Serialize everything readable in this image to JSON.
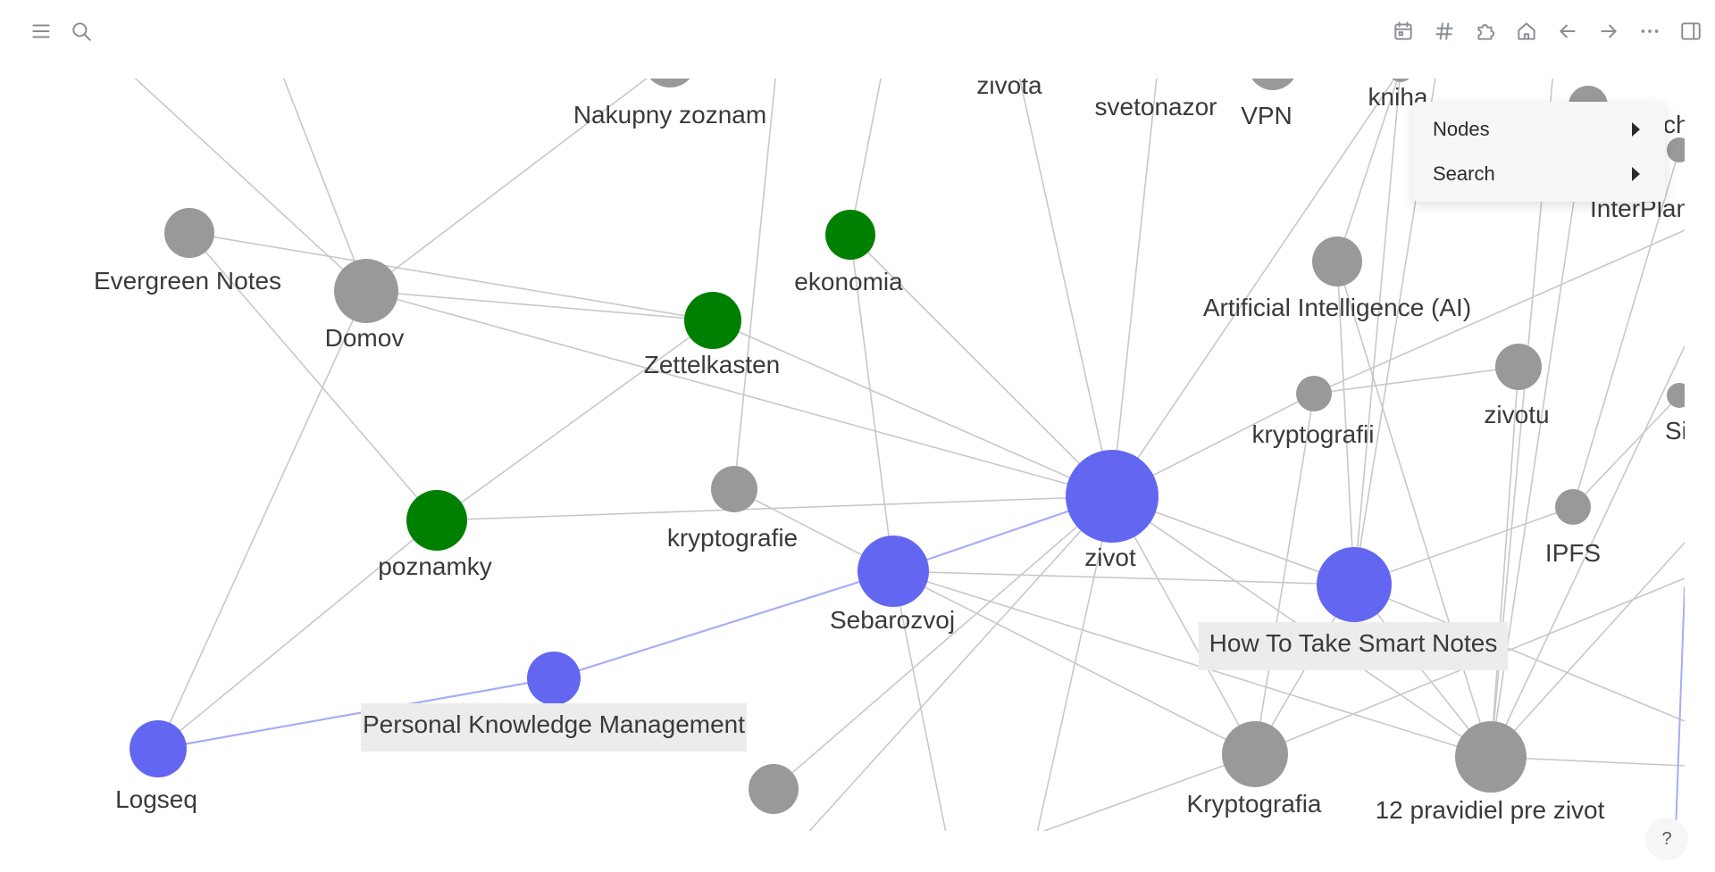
{
  "toolbar": {
    "left": [
      {
        "name": "menu-icon",
        "glyph": "hamburger"
      },
      {
        "name": "search-icon",
        "glyph": "search"
      }
    ],
    "right": [
      {
        "name": "calendar-icon",
        "glyph": "calendar"
      },
      {
        "name": "hashtag-icon",
        "glyph": "hash"
      },
      {
        "name": "puzzle-icon",
        "glyph": "puzzle"
      },
      {
        "name": "home-icon",
        "glyph": "home"
      },
      {
        "name": "arrow-left-icon",
        "glyph": "arrow-left"
      },
      {
        "name": "arrow-right-icon",
        "glyph": "arrow-right"
      },
      {
        "name": "more-icon",
        "glyph": "dots"
      },
      {
        "name": "sidebar-toggle-icon",
        "glyph": "sidebar"
      }
    ]
  },
  "colors": {
    "accent": "#6366f1",
    "green": "#008000",
    "gray": "#999999",
    "edge": "#c8c8c8",
    "edge_highlight": "#a5adf7"
  },
  "context_menu": {
    "items": [
      {
        "label": "Nodes"
      },
      {
        "label": "Search"
      }
    ]
  },
  "graph": {
    "nodes": [
      {
        "id": "nakupny",
        "label": "Nakupny zoznam",
        "color": "gray",
        "size": 30
      },
      {
        "id": "zivota",
        "label": "zivota",
        "color": "gray",
        "size": 14
      },
      {
        "id": "svetonazor",
        "label": "svetonazor",
        "color": "gray",
        "size": 14
      },
      {
        "id": "vpn",
        "label": "VPN",
        "color": "gray",
        "size": 28
      },
      {
        "id": "kniha",
        "label": "kniha",
        "color": "gray",
        "size": 14
      },
      {
        "id": "ch",
        "label": "ch",
        "color": "gray",
        "size": 22
      },
      {
        "id": "interplanetary",
        "label": "InterPlan",
        "color": "gray",
        "size": 14
      },
      {
        "id": "evergreen",
        "label": "Evergreen Notes",
        "color": "gray",
        "size": 28
      },
      {
        "id": "domov",
        "label": "Domov",
        "color": "gray",
        "size": 36
      },
      {
        "id": "ekonomia",
        "label": "ekonomia",
        "color": "green",
        "size": 28
      },
      {
        "id": "zettelkasten",
        "label": "Zettelkasten",
        "color": "green",
        "size": 32
      },
      {
        "id": "ai",
        "label": "Artificial Intelligence (AI)",
        "color": "gray",
        "size": 28
      },
      {
        "id": "zivotu",
        "label": "zivotu",
        "color": "gray",
        "size": 26
      },
      {
        "id": "kryptografii",
        "label": "kryptografii",
        "color": "gray",
        "size": 20
      },
      {
        "id": "si",
        "label": "Si",
        "color": "gray",
        "size": 14
      },
      {
        "id": "ipfs",
        "label": "IPFS",
        "color": "gray",
        "size": 20
      },
      {
        "id": "poznamky",
        "label": "poznamky",
        "color": "green",
        "size": 34
      },
      {
        "id": "kryptografie",
        "label": "kryptografie",
        "color": "gray",
        "size": 26
      },
      {
        "id": "zivot",
        "label": "zivot",
        "color": "accent",
        "size": 52
      },
      {
        "id": "sebarozvoj",
        "label": "Sebarozvoj",
        "color": "accent",
        "size": 40
      },
      {
        "id": "smartnotes",
        "label": "How To Take Smart Notes",
        "color": "accent",
        "size": 42,
        "highlight": true
      },
      {
        "id": "pkm",
        "label": "Personal Knowledge Management",
        "color": "accent",
        "size": 30,
        "highlight": true
      },
      {
        "id": "logseq",
        "label": "Logseq",
        "color": "accent",
        "size": 32
      },
      {
        "id": "kryptografia",
        "label": "Kryptografia",
        "color": "gray",
        "size": 37
      },
      {
        "id": "pravidiel",
        "label": "12 pravidiel pre zivot",
        "color": "gray",
        "size": 40
      },
      {
        "id": "bottomgray",
        "label": "",
        "color": "gray",
        "size": 28
      }
    ],
    "edges": [
      [
        "evergreen",
        "zettelkasten"
      ],
      [
        "evergreen",
        "poznamky"
      ],
      [
        "domov",
        "nakupny"
      ],
      [
        "domov",
        "zettelkasten"
      ],
      [
        "domov",
        "zivot"
      ],
      [
        "domov",
        "logseq"
      ],
      [
        "zettelkasten",
        "poznamky"
      ],
      [
        "zettelkasten",
        "zivot"
      ],
      [
        "ekonomia",
        "zivot"
      ],
      [
        "ekonomia",
        "sebarozvoj"
      ],
      [
        "poznamky",
        "zivot"
      ],
      [
        "poznamky",
        "logseq"
      ],
      [
        "kryptografie",
        "sebarozvoj"
      ],
      [
        "zivot",
        "zivota"
      ],
      [
        "zivot",
        "svetonazor"
      ],
      [
        "zivot",
        "kniha"
      ],
      [
        "zivot",
        "kryptografii"
      ],
      [
        "zivot",
        "smartnotes"
      ],
      [
        "zivot",
        "kryptografia"
      ],
      [
        "zivot",
        "pravidiel"
      ],
      [
        "zivot",
        "bottomgray"
      ],
      [
        "zivot",
        "sebarozvoj"
      ],
      [
        "sebarozvoj",
        "smartnotes"
      ],
      [
        "sebarozvoj",
        "pravidiel"
      ],
      [
        "sebarozvoj",
        "kryptografia"
      ],
      [
        "smartnotes",
        "ai"
      ],
      [
        "smartnotes",
        "kryptografia"
      ],
      [
        "smartnotes",
        "pravidiel"
      ],
      [
        "smartnotes",
        "kniha"
      ],
      [
        "smartnotes",
        "ipfs"
      ],
      [
        "kryptografii",
        "zivotu"
      ],
      [
        "kryptografii",
        "kryptografia"
      ],
      [
        "zivotu",
        "pravidiel"
      ],
      [
        "ai",
        "pravidiel"
      ],
      [
        "kniha",
        "ai"
      ],
      [
        "kniha",
        "vpn"
      ],
      [
        "ch",
        "pravidiel"
      ],
      [
        "ipfs",
        "si"
      ],
      [
        "interplanetary",
        "ipfs"
      ]
    ],
    "highlight_edges": [
      [
        "logseq",
        "pkm"
      ],
      [
        "pkm",
        "sebarozvoj"
      ],
      [
        "sebarozvoj",
        "zivot"
      ]
    ]
  },
  "help": {
    "label": "?"
  }
}
